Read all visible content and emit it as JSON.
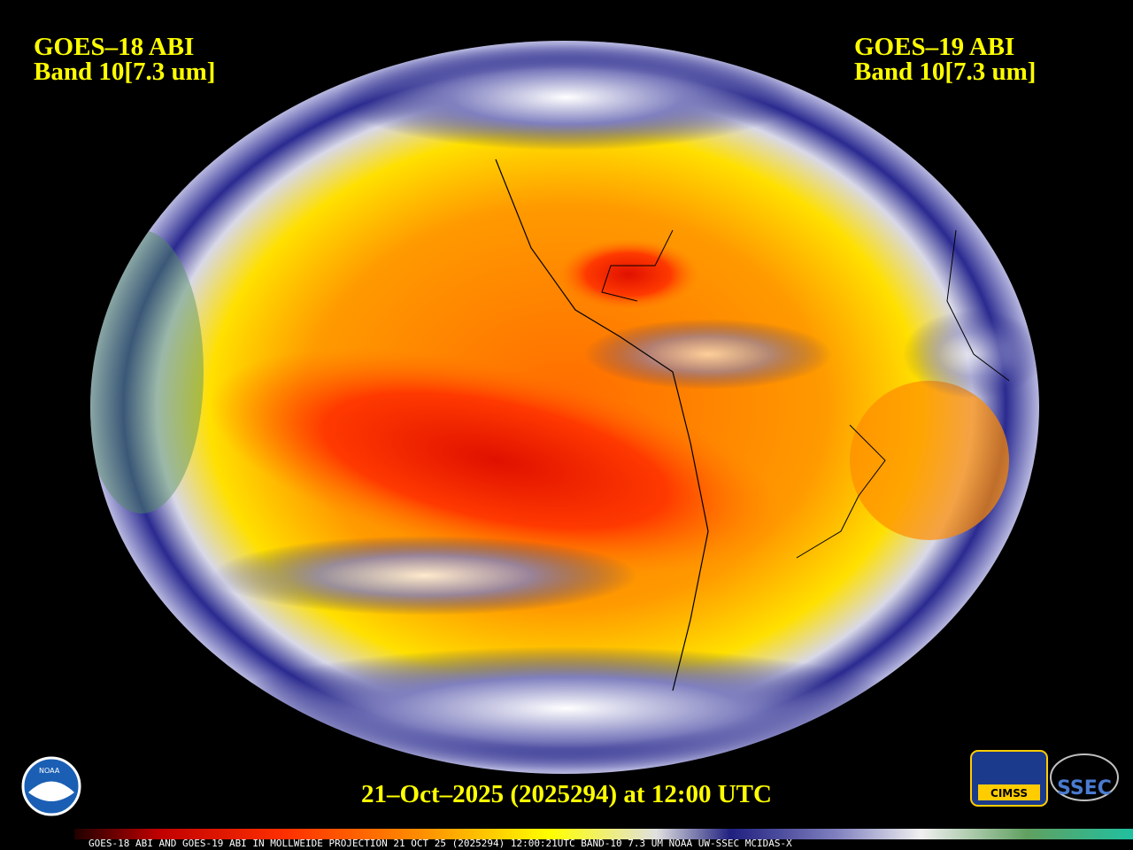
{
  "header": {
    "left": {
      "satellite": "GOES–18 ABI",
      "band": "Band 10[7.3 um]"
    },
    "right": {
      "satellite": "GOES–19 ABI",
      "band": "Band 10[7.3 um]"
    }
  },
  "timestamp": "21–Oct–2025 (2025294) at 12:00 UTC",
  "footer": "GOES-18 ABI AND GOES-19 ABI IN MOLLWEIDE PROJECTION 21 OCT 25 (2025294) 12:00:21UTC BAND-10 7.3 UM NOAA UW-SSEC MCIDAS-X",
  "logos": {
    "noaa": "NOAA",
    "cimss": "CIMSS",
    "ssec": "SSEC"
  }
}
